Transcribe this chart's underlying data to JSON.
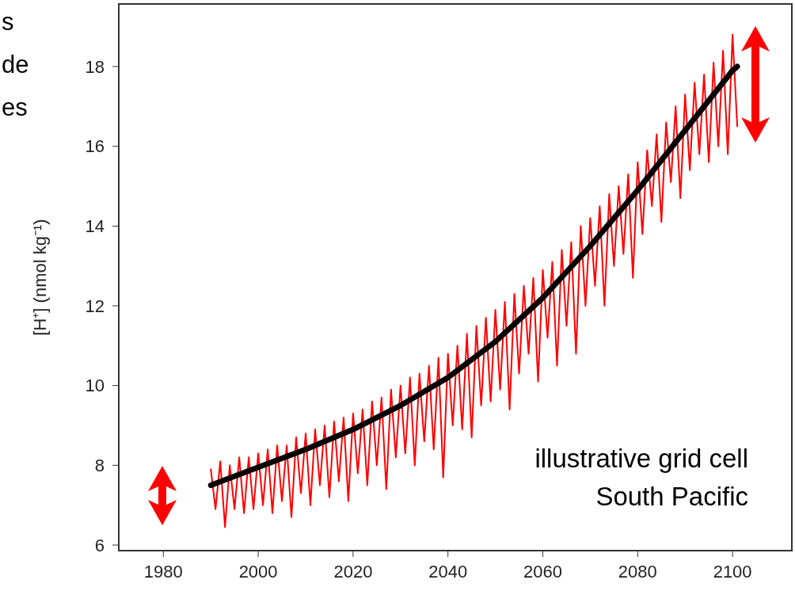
{
  "chart_data": {
    "type": "line",
    "ylabel": "[H⁺] (nmol kg⁻¹)",
    "xlim": [
      1970.6,
      2112.5
    ],
    "xticks": [
      1980,
      2000,
      2020,
      2040,
      2060,
      2080,
      2100
    ],
    "ylim": [
      5.86,
      19.57
    ],
    "yticks": [
      6,
      8,
      10,
      12,
      14,
      16,
      18
    ],
    "grid": false,
    "marker": "none",
    "line_style": "solid",
    "annotations": [
      "s",
      "de",
      "es",
      "illustrative grid cell",
      "South Pacific"
    ],
    "series": [
      {
        "color": "#ff0000",
        "x": [
          1990,
          1991,
          1992,
          1993,
          1994,
          1995,
          1996,
          1997,
          1998,
          1999,
          2000,
          2001,
          2002,
          2003,
          2004,
          2005,
          2006,
          2007,
          2008,
          2009,
          2010,
          2011,
          2012,
          2013,
          2014,
          2015,
          2016,
          2017,
          2018,
          2019,
          2020,
          2021,
          2022,
          2023,
          2024,
          2025,
          2026,
          2027,
          2028,
          2029,
          2030,
          2031,
          2032,
          2033,
          2034,
          2035,
          2036,
          2037,
          2038,
          2039,
          2040,
          2041,
          2042,
          2043,
          2044,
          2045,
          2046,
          2047,
          2048,
          2049,
          2050,
          2051,
          2052,
          2053,
          2054,
          2055,
          2056,
          2057,
          2058,
          2059,
          2060,
          2061,
          2062,
          2063,
          2064,
          2065,
          2066,
          2067,
          2068,
          2069,
          2070,
          2071,
          2072,
          2073,
          2074,
          2075,
          2076,
          2077,
          2078,
          2079,
          2080,
          2081,
          2082,
          2083,
          2084,
          2085,
          2086,
          2087,
          2088,
          2089,
          2090,
          2091,
          2092,
          2093,
          2094,
          2095,
          2096,
          2097,
          2098,
          2099,
          2100,
          2101
        ],
        "values": [
          7.9,
          6.9,
          8.1,
          6.45,
          8.0,
          6.9,
          8.2,
          6.8,
          8.2,
          6.9,
          8.3,
          7.0,
          8.4,
          6.8,
          8.5,
          7.1,
          8.5,
          6.7,
          8.7,
          7.3,
          8.8,
          7.0,
          8.9,
          7.5,
          9.0,
          7.2,
          9.1,
          7.6,
          9.2,
          7.1,
          9.3,
          7.8,
          9.4,
          7.5,
          9.6,
          8.0,
          9.7,
          7.4,
          9.9,
          8.2,
          10.0,
          8.3,
          10.2,
          8.0,
          10.3,
          8.6,
          10.5,
          8.4,
          10.7,
          7.7,
          10.8,
          9.0,
          11.0,
          8.9,
          11.3,
          8.7,
          11.5,
          9.5,
          11.7,
          9.6,
          11.9,
          9.9,
          12.1,
          9.4,
          12.3,
          10.3,
          12.5,
          10.8,
          12.7,
          10.1,
          12.9,
          11.2,
          13.1,
          10.5,
          13.4,
          11.5,
          13.6,
          10.8,
          14.0,
          12.0,
          14.2,
          12.5,
          14.5,
          12.0,
          14.8,
          13.0,
          15.0,
          13.3,
          15.3,
          12.7,
          15.6,
          13.8,
          15.9,
          14.5,
          16.3,
          14.1,
          16.6,
          15.1,
          17.0,
          14.7,
          17.3,
          15.4,
          17.6,
          15.8,
          17.8,
          15.6,
          18.1,
          16.0,
          18.4,
          15.8,
          18.8,
          16.5
        ]
      },
      {
        "color": "#000000",
        "x": [
          1990,
          2000,
          2010,
          2020,
          2030,
          2040,
          2050,
          2060,
          2070,
          2080,
          2090,
          2100,
          2101
        ],
        "values": [
          7.5,
          7.95,
          8.4,
          8.9,
          9.5,
          10.2,
          11.1,
          12.2,
          13.5,
          14.9,
          16.4,
          17.9,
          18.0
        ]
      }
    ]
  }
}
